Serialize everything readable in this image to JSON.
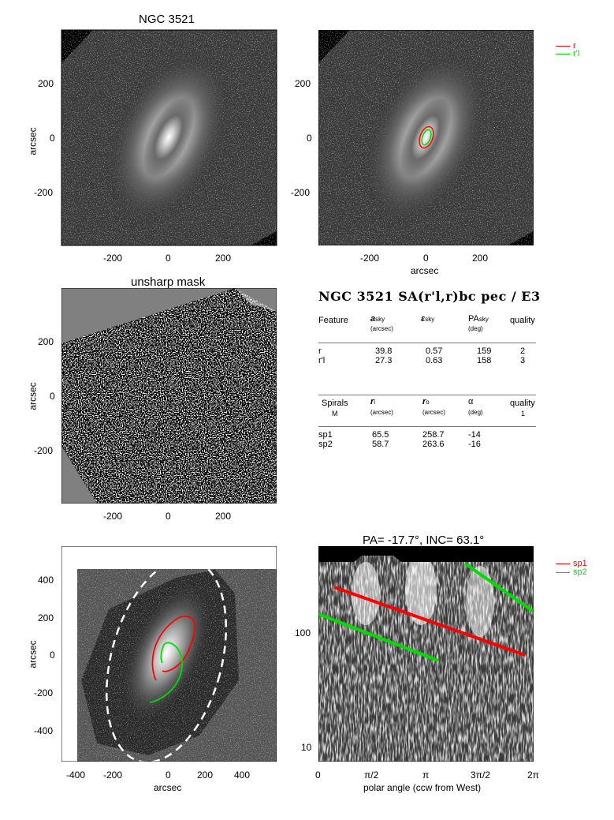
{
  "panel1": {
    "title": "NGC 3521",
    "ylabel": "arcsec",
    "yticks": [
      "200",
      "0",
      "-200"
    ],
    "xticks": [
      "-200",
      "0",
      "200"
    ]
  },
  "panel2": {
    "xlabel": "arcsec",
    "yticks": [
      "200",
      "0",
      "-200"
    ],
    "xticks": [
      "-200",
      "0",
      "200"
    ]
  },
  "legend_top": [
    {
      "name": "r",
      "color": "#ff0000"
    },
    {
      "name": "r'l",
      "color": "#00dd00"
    }
  ],
  "panel3": {
    "title": "unsharp mask",
    "ylabel": "arcsec",
    "yticks": [
      "200",
      "0",
      "-200"
    ],
    "xticks": [
      "-200",
      "0",
      "200"
    ]
  },
  "table": {
    "title": "NGC 3521  SA(r'l,r)bc pec / E3",
    "features_header": {
      "feature": "Feature",
      "a": "a",
      "a_sub": "sky",
      "a_unit": "(arcsec)",
      "e": "ε",
      "e_sub": "sky",
      "pa": "PA",
      "pa_sub": "sky",
      "pa_unit": "(deg)",
      "quality": "quality"
    },
    "features": [
      {
        "name": "r",
        "a": "39.8",
        "e": "0.57",
        "pa": "159",
        "q": "2"
      },
      {
        "name": "r'l",
        "a": "27.3",
        "e": "0.63",
        "pa": "158",
        "q": "3"
      }
    ],
    "spirals_header": {
      "spirals": "Spirals",
      "m": "M",
      "ri": "r",
      "ri_sub": "i",
      "ri_unit": "(arcsec)",
      "ro": "r",
      "ro_sub": "o",
      "ro_unit": "(arcsec)",
      "alpha": "α",
      "alpha_unit": "(deg)",
      "quality": "quality",
      "quality_val": "1"
    },
    "spirals": [
      {
        "name": "sp1",
        "ri": "65.5",
        "ro": "258.7",
        "alpha": "-14"
      },
      {
        "name": "sp2",
        "ri": "58.7",
        "ro": "263.6",
        "alpha": "-16"
      }
    ]
  },
  "panel5": {
    "ylabel": "arcsec",
    "xlabel": "arcsec",
    "yticks": [
      "400",
      "200",
      "0",
      "-200",
      "-400"
    ],
    "xticks": [
      "-400",
      "-200",
      "0",
      "200",
      "400"
    ]
  },
  "panel6": {
    "title": "PA= -17.7°, INC=  63.1°",
    "xlabel": "polar angle (ccw from West)",
    "yticks": [
      "100",
      "10"
    ],
    "xticks": [
      "0",
      "π/2",
      "π",
      "3π/2",
      "2π"
    ]
  },
  "legend_bottom": [
    {
      "name": "sp1",
      "color": "#ff0000"
    },
    {
      "name": "sp2",
      "color": "#00dd00"
    }
  ]
}
